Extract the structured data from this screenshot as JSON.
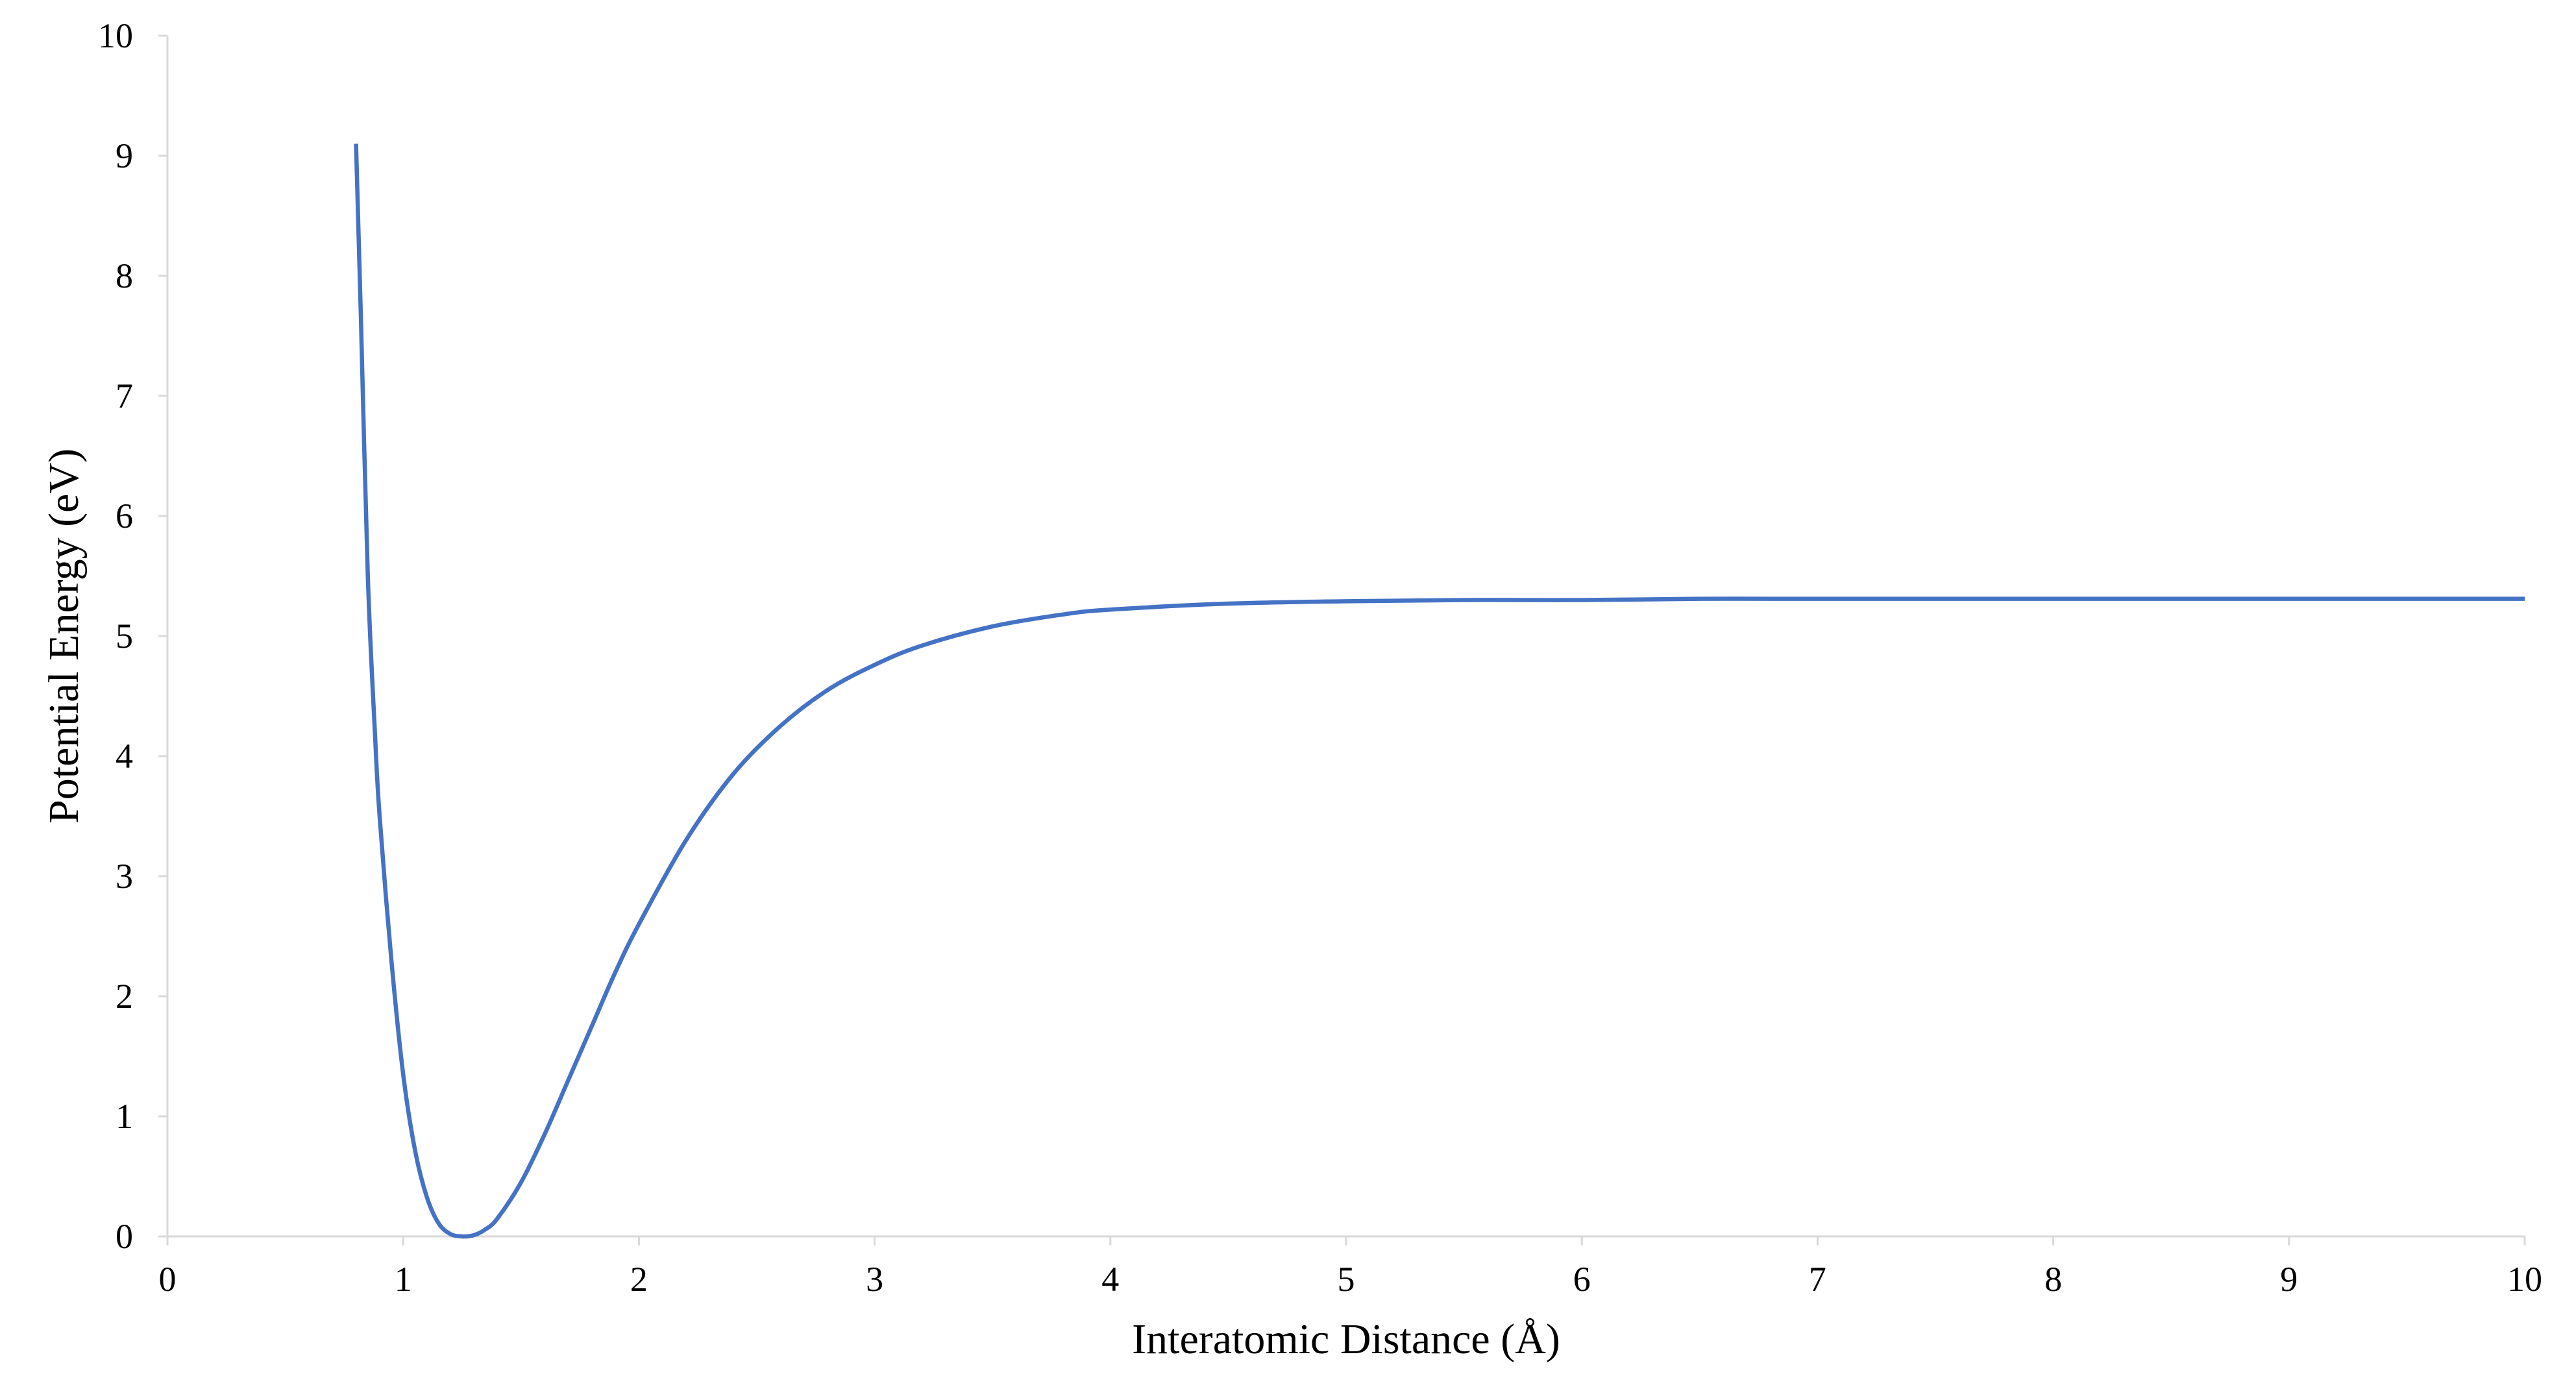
{
  "chart_data": {
    "type": "line",
    "title": "",
    "xlabel": "Interatomic Distance (Å)",
    "ylabel": "Potential Energy (eV)",
    "xlim": [
      0,
      10
    ],
    "ylim": [
      0,
      10
    ],
    "x_ticks": [
      "0",
      "1",
      "2",
      "3",
      "4",
      "5",
      "6",
      "7",
      "8",
      "9",
      "10"
    ],
    "y_ticks": [
      "0",
      "1",
      "2",
      "3",
      "4",
      "5",
      "6",
      "7",
      "8",
      "9",
      "10"
    ],
    "grid": false,
    "legend": "none",
    "series_color": "#4472C4",
    "series": [
      {
        "x": [
          0.8,
          0.82,
          0.85,
          0.88,
          0.9,
          0.95,
          1.0,
          1.05,
          1.1,
          1.15,
          1.2,
          1.25,
          1.3,
          1.35,
          1.4,
          1.5,
          1.6,
          1.7,
          1.8,
          1.9,
          2.0,
          2.2,
          2.4,
          2.6,
          2.8,
          3.0,
          3.2,
          3.5,
          3.8,
          4.0,
          4.5,
          5.0,
          5.5,
          6.0,
          6.5,
          7.0,
          7.5,
          8.0,
          8.5,
          9.0,
          9.5,
          10.0
        ],
        "y": [
          9.1,
          7.7,
          5.5,
          4.2,
          3.5,
          2.3,
          1.35,
          0.72,
          0.33,
          0.11,
          0.02,
          0.0,
          0.01,
          0.06,
          0.15,
          0.45,
          0.85,
          1.3,
          1.75,
          2.2,
          2.6,
          3.3,
          3.85,
          4.25,
          4.55,
          4.76,
          4.92,
          5.08,
          5.18,
          5.22,
          5.27,
          5.29,
          5.3,
          5.3,
          5.31,
          5.31,
          5.31,
          5.31,
          5.31,
          5.31,
          5.31,
          5.31
        ]
      }
    ]
  }
}
